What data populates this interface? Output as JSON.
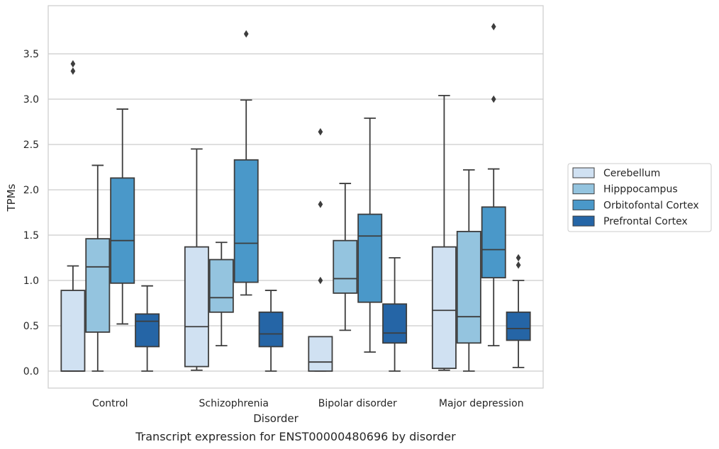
{
  "chart_data": {
    "type": "box",
    "caption": "Transcript expression for ENST00000480696 by disorder",
    "xlabel": "Disorder",
    "ylabel": "TPMs",
    "ylim": [
      -0.18,
      3.98
    ],
    "yticks": [
      0.0,
      0.5,
      1.0,
      1.5,
      2.0,
      2.5,
      3.0,
      3.5
    ],
    "ytick_labels": [
      "0.0",
      "0.5",
      "1.0",
      "1.5",
      "2.0",
      "2.5",
      "3.0",
      "3.5"
    ],
    "categories": [
      "Control",
      "Schizophrenia",
      "Bipolar disorder",
      "Major depression"
    ],
    "grid": "horizontal",
    "legend_position": "right",
    "series": [
      {
        "name": "Cerebellum",
        "color": "#d0e1f2",
        "boxes": [
          {
            "whislo": 0.0,
            "q1": 0.0,
            "med": 0.0,
            "q3": 0.89,
            "whishi": 1.16,
            "fliers": [
              3.31,
              3.39
            ]
          },
          {
            "whislo": 0.01,
            "q1": 0.05,
            "med": 0.49,
            "q3": 1.37,
            "whishi": 2.45,
            "fliers": []
          },
          {
            "whislo": 0.0,
            "q1": 0.0,
            "med": 0.1,
            "q3": 0.38,
            "whishi": 0.38,
            "fliers": [
              2.64,
              1.84,
              1.0
            ]
          },
          {
            "whislo": 0.01,
            "q1": 0.03,
            "med": 0.67,
            "q3": 1.37,
            "whishi": 3.04,
            "fliers": []
          }
        ]
      },
      {
        "name": "Hipppocampus",
        "color": "#94c4df",
        "boxes": [
          {
            "whislo": 0.0,
            "q1": 0.43,
            "med": 1.15,
            "q3": 1.46,
            "whishi": 2.27,
            "fliers": []
          },
          {
            "whislo": 0.28,
            "q1": 0.65,
            "med": 0.81,
            "q3": 1.23,
            "whishi": 1.42,
            "fliers": []
          },
          {
            "whislo": 0.45,
            "q1": 0.86,
            "med": 1.02,
            "q3": 1.44,
            "whishi": 2.07,
            "fliers": []
          },
          {
            "whislo": 0.0,
            "q1": 0.31,
            "med": 0.6,
            "q3": 1.54,
            "whishi": 2.22,
            "fliers": []
          }
        ]
      },
      {
        "name": "Orbitofontal Cortex",
        "color": "#4a98c9",
        "boxes": [
          {
            "whislo": 0.52,
            "q1": 0.97,
            "med": 1.44,
            "q3": 2.13,
            "whishi": 2.89,
            "fliers": []
          },
          {
            "whislo": 0.84,
            "q1": 0.98,
            "med": 1.41,
            "q3": 2.33,
            "whishi": 2.99,
            "fliers": [
              3.72
            ]
          },
          {
            "whislo": 0.21,
            "q1": 0.76,
            "med": 1.49,
            "q3": 1.73,
            "whishi": 2.79,
            "fliers": []
          },
          {
            "whislo": 0.28,
            "q1": 1.03,
            "med": 1.34,
            "q3": 1.81,
            "whishi": 2.23,
            "fliers": [
              3.0,
              3.8
            ]
          }
        ]
      },
      {
        "name": "Prefrontal Cortex",
        "color": "#2565a6",
        "boxes": [
          {
            "whislo": 0.0,
            "q1": 0.27,
            "med": 0.55,
            "q3": 0.63,
            "whishi": 0.94,
            "fliers": []
          },
          {
            "whislo": 0.0,
            "q1": 0.27,
            "med": 0.41,
            "q3": 0.65,
            "whishi": 0.89,
            "fliers": []
          },
          {
            "whislo": 0.0,
            "q1": 0.31,
            "med": 0.42,
            "q3": 0.74,
            "whishi": 1.25,
            "fliers": []
          },
          {
            "whislo": 0.04,
            "q1": 0.34,
            "med": 0.47,
            "q3": 0.65,
            "whishi": 1.0,
            "fliers": [
              1.17,
              1.25
            ]
          }
        ]
      }
    ]
  }
}
